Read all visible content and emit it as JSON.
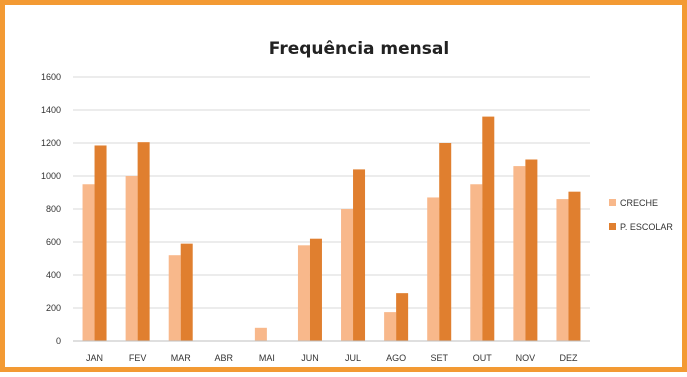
{
  "chart_data": {
    "type": "bar",
    "title": "Frequência mensal",
    "xlabel": "",
    "ylabel": "",
    "categories": [
      "JAN",
      "FEV",
      "MAR",
      "ABR",
      "MAI",
      "JUN",
      "JUL",
      "AGO",
      "SET",
      "OUT",
      "NOV",
      "DEZ"
    ],
    "series": [
      {
        "name": "CRECHE",
        "color": "#f8b88b",
        "values": [
          950,
          1000,
          520,
          0,
          80,
          580,
          800,
          175,
          870,
          950,
          1060,
          860
        ]
      },
      {
        "name": "P. ESCOLAR",
        "color": "#e07f2f",
        "values": [
          1185,
          1205,
          590,
          0,
          0,
          620,
          1040,
          290,
          1200,
          1360,
          1100,
          905
        ]
      }
    ],
    "ylim": [
      0,
      1600
    ],
    "yticks": [
      0,
      200,
      400,
      600,
      800,
      1000,
      1200,
      1400,
      1600
    ],
    "grid": true,
    "legend": "right"
  }
}
